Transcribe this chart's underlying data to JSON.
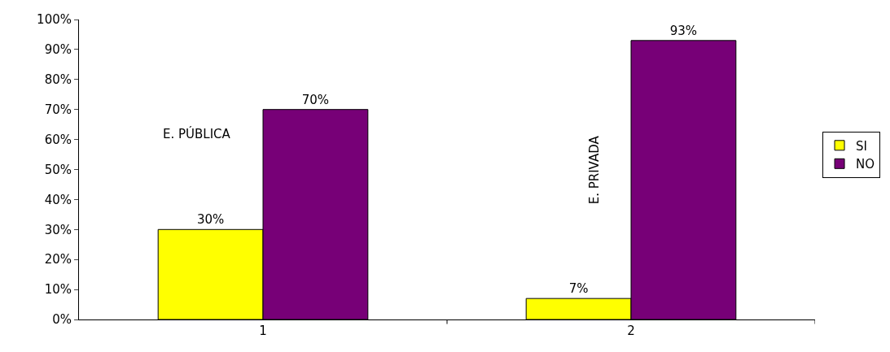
{
  "chart_data": {
    "type": "bar",
    "categories": [
      "1",
      "2"
    ],
    "series": [
      {
        "name": "SI",
        "color": "#ffff00",
        "values": [
          30,
          7
        ],
        "value_labels": [
          "30%",
          "7%"
        ]
      },
      {
        "name": "NO",
        "color": "#770077",
        "values": [
          70,
          93
        ],
        "value_labels": [
          "70%",
          "93%"
        ]
      }
    ],
    "ylim": [
      0,
      100
    ],
    "yticks": [
      {
        "value": 0,
        "label": "0%"
      },
      {
        "value": 10,
        "label": "10%"
      },
      {
        "value": 20,
        "label": "20%"
      },
      {
        "value": 30,
        "label": "30%"
      },
      {
        "value": 40,
        "label": "40%"
      },
      {
        "value": 50,
        "label": "50%"
      },
      {
        "value": 60,
        "label": "60%"
      },
      {
        "value": 70,
        "label": "70%"
      },
      {
        "value": 80,
        "label": "80%"
      },
      {
        "value": 90,
        "label": "90%"
      },
      {
        "value": 100,
        "label": "100%"
      }
    ],
    "annotations": [
      "E. PÚBLICA",
      "E. PRIVADA"
    ],
    "grid": false,
    "legend": "right"
  }
}
